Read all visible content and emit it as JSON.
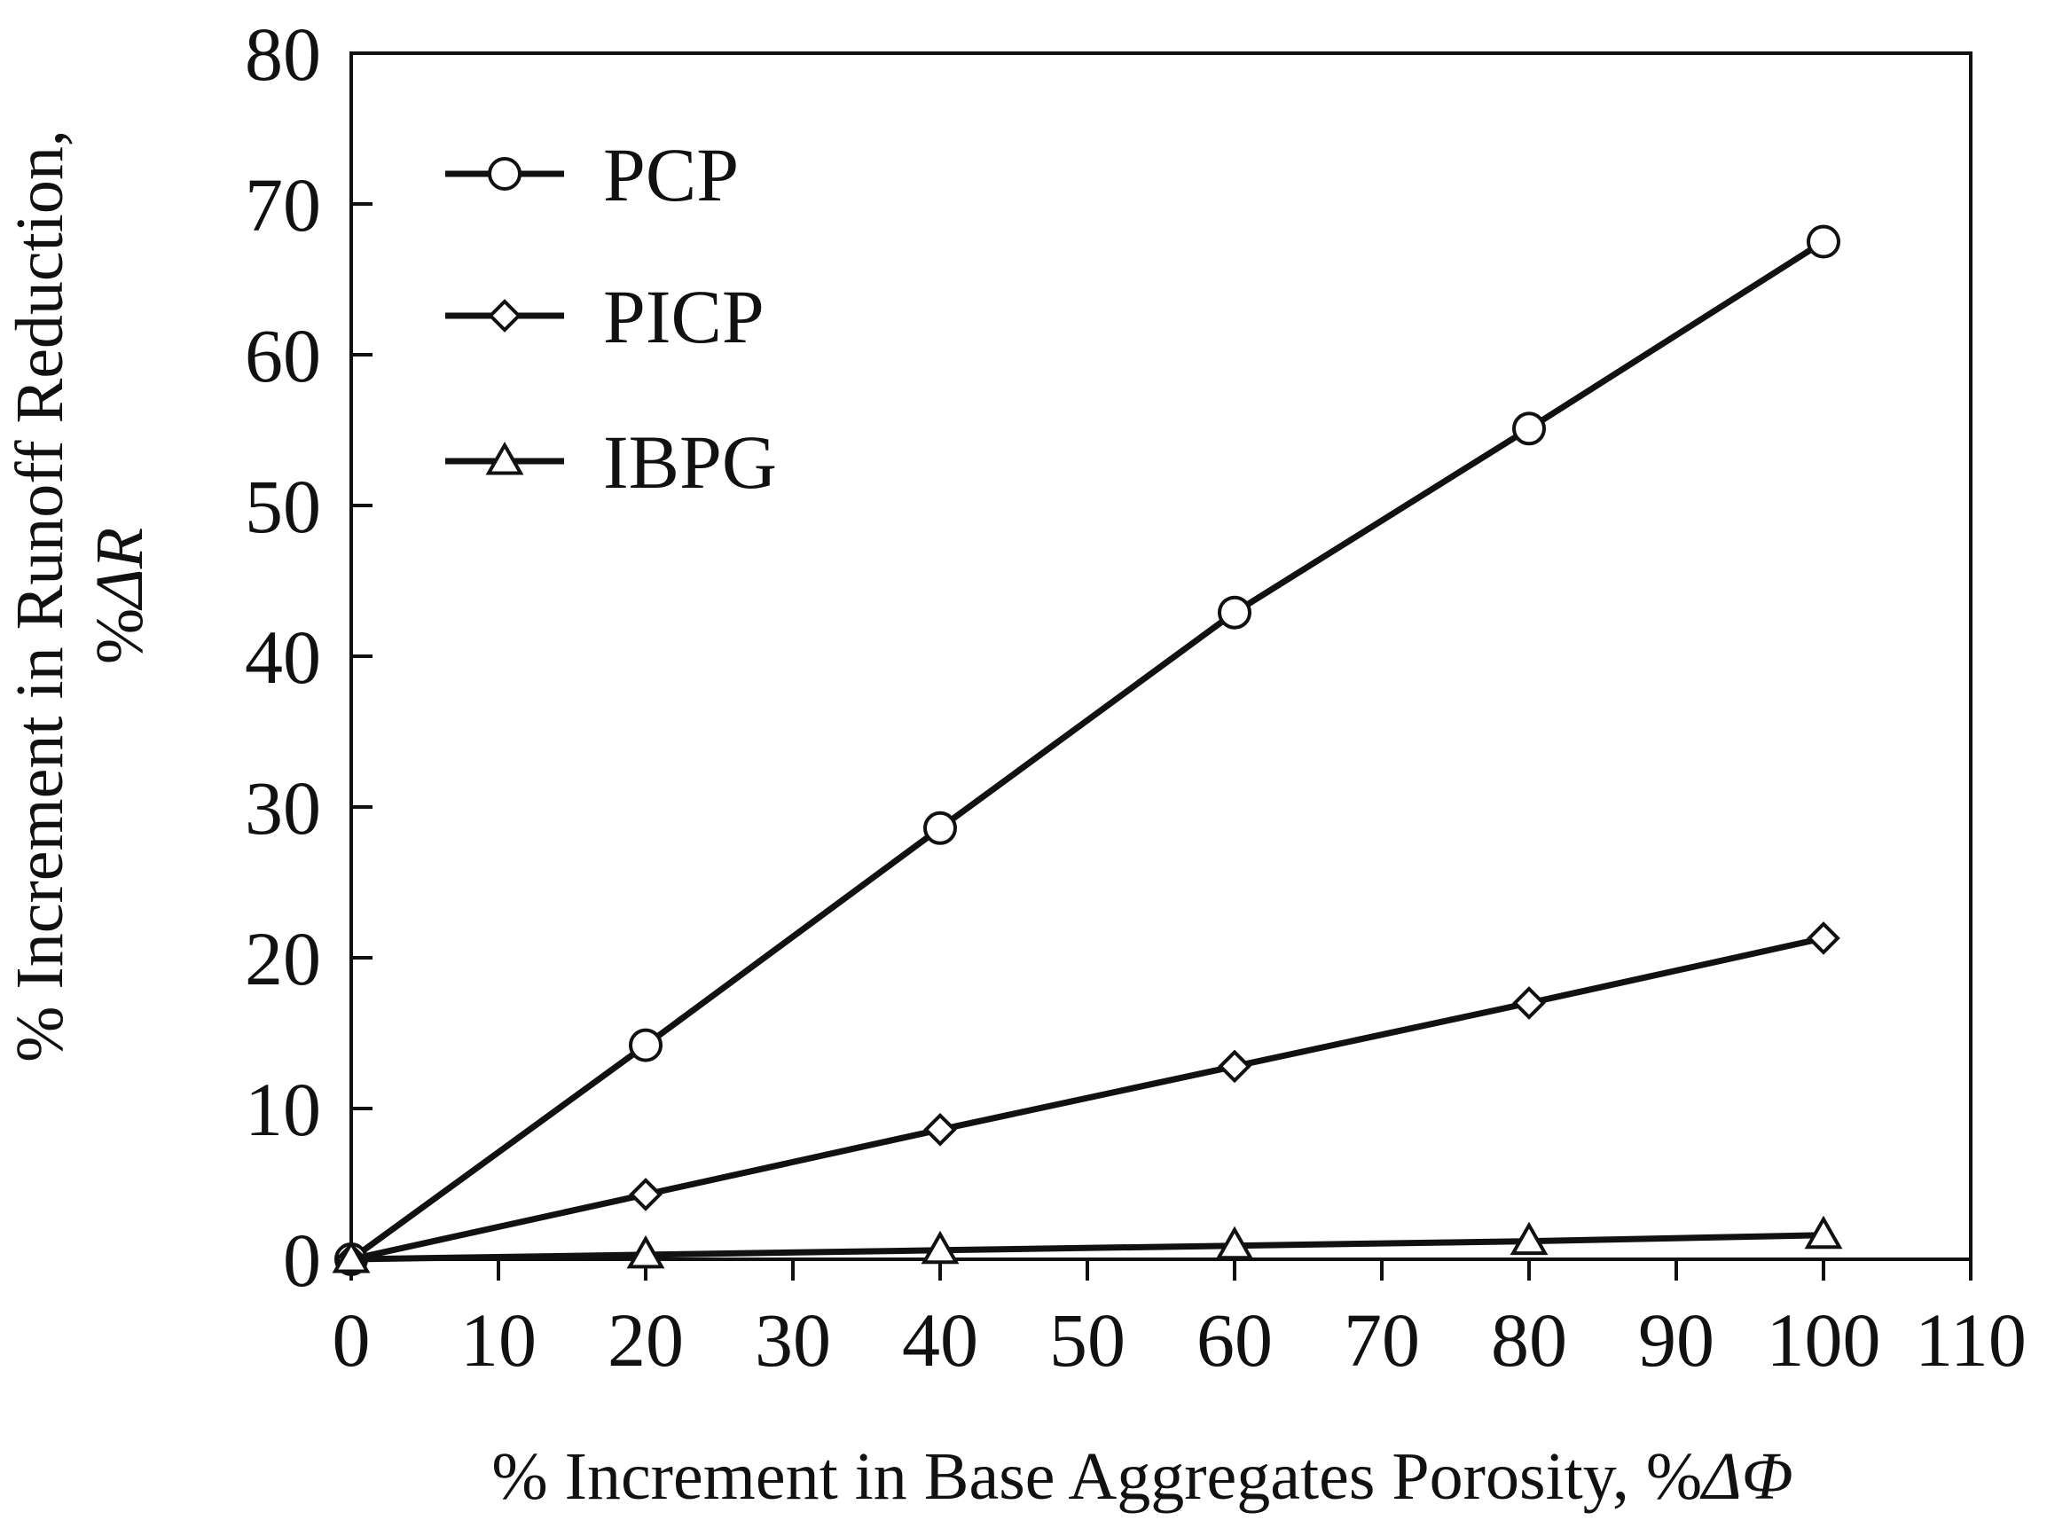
{
  "chart_data": {
    "type": "line",
    "title": "",
    "xlabel": "% Increment in Base Aggregates Porosity, %",
    "xlabel_symbol": "ΔΦ",
    "ylabel": "%  Increment in Runoff Reduction,",
    "ylabel_line2_prefix": "%",
    "ylabel_symbol": "ΔR",
    "xlim": [
      0,
      110
    ],
    "ylim": [
      0,
      80
    ],
    "xticks": [
      0,
      10,
      20,
      30,
      40,
      50,
      60,
      70,
      80,
      90,
      100,
      110
    ],
    "yticks": [
      0,
      10,
      20,
      30,
      40,
      50,
      60,
      70,
      80
    ],
    "grid": false,
    "legend_position": "top-left",
    "x": [
      0,
      20,
      40,
      60,
      80,
      100
    ],
    "series": [
      {
        "name": "PCP",
        "marker": "circle",
        "values": [
          0,
          14.2,
          28.6,
          42.9,
          55.1,
          67.5
        ]
      },
      {
        "name": "PICP",
        "marker": "diamond",
        "values": [
          0,
          4.3,
          8.6,
          12.8,
          17.0,
          21.3
        ]
      },
      {
        "name": "IBPG",
        "marker": "triangle",
        "values": [
          0,
          0.3,
          0.6,
          0.9,
          1.2,
          1.6
        ]
      }
    ],
    "colors": {
      "line": "#111111",
      "marker_fill": "#ffffff"
    }
  }
}
